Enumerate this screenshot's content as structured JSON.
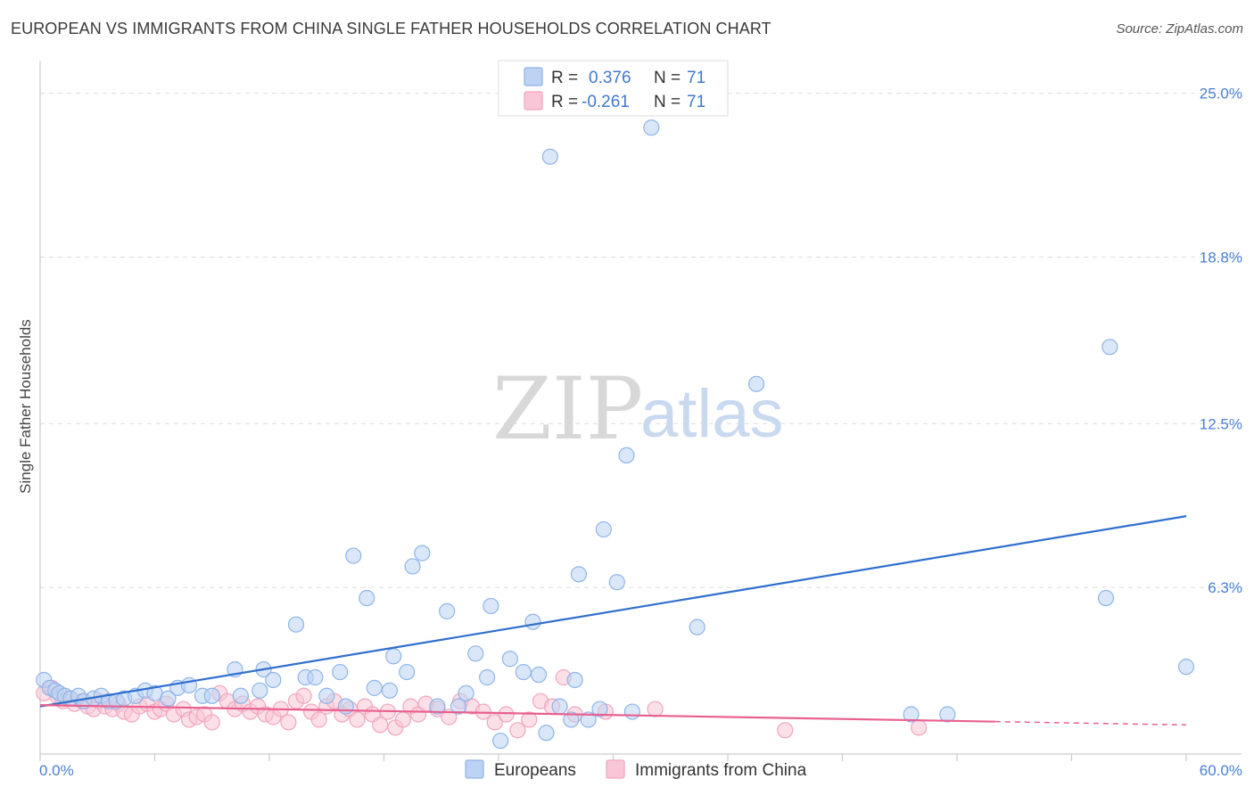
{
  "title": "EUROPEAN VS IMMIGRANTS FROM CHINA SINGLE FATHER HOUSEHOLDS CORRELATION CHART",
  "source": "Source: ZipAtlas.com",
  "watermark": {
    "zip": "ZIP",
    "atlas": "atlas"
  },
  "legend": {
    "r_label": "R =",
    "n_label": "N =",
    "series": [
      {
        "name": "Europeans",
        "r": "0.376",
        "n": "71",
        "color": "#8fb4e8",
        "fill": "#bcd3f3",
        "line": "#2f6fce"
      },
      {
        "name": "Immigrants from China",
        "r": "-0.261",
        "n": "71",
        "color": "#f2a5bf",
        "fill": "#f8c6d6",
        "line": "#e8608f"
      }
    ]
  },
  "chart_data": {
    "type": "scatter",
    "title": "EUROPEAN VS IMMIGRANTS FROM CHINA SINGLE FATHER HOUSEHOLDS CORRELATION CHART",
    "xlabel": "",
    "ylabel": "Single Father Households",
    "xlim": [
      0,
      60
    ],
    "ylim": [
      0,
      26.1
    ],
    "y_ticks": [
      {
        "value": 6.3,
        "label": "6.3%"
      },
      {
        "value": 12.5,
        "label": "12.5%"
      },
      {
        "value": 18.8,
        "label": "18.8%"
      },
      {
        "value": 25.0,
        "label": "25.0%"
      }
    ],
    "x_tick_labels": [
      {
        "value": 0,
        "label": "0.0%"
      },
      {
        "value": 60,
        "label": "60.0%"
      }
    ],
    "x_minor_ticks": [
      0,
      6,
      12,
      18,
      24,
      30,
      36,
      42,
      48,
      54,
      60
    ],
    "series": [
      {
        "name": "Europeans",
        "trend": {
          "x": [
            0,
            60
          ],
          "y": [
            1.8,
            9.0
          ],
          "dashed_from": null
        },
        "points": [
          [
            0.2,
            2.8
          ],
          [
            0.5,
            2.5
          ],
          [
            0.8,
            2.4
          ],
          [
            1.0,
            2.3
          ],
          [
            1.3,
            2.2
          ],
          [
            1.6,
            2.1
          ],
          [
            2.0,
            2.2
          ],
          [
            2.3,
            2.0
          ],
          [
            2.8,
            2.1
          ],
          [
            3.2,
            2.2
          ],
          [
            3.6,
            2.0
          ],
          [
            4.0,
            2.0
          ],
          [
            4.4,
            2.1
          ],
          [
            5.0,
            2.2
          ],
          [
            5.5,
            2.4
          ],
          [
            6.0,
            2.3
          ],
          [
            6.7,
            2.1
          ],
          [
            7.2,
            2.5
          ],
          [
            7.8,
            2.6
          ],
          [
            8.5,
            2.2
          ],
          [
            9.0,
            2.2
          ],
          [
            10.2,
            3.2
          ],
          [
            10.5,
            2.2
          ],
          [
            11.5,
            2.4
          ],
          [
            11.7,
            3.2
          ],
          [
            12.2,
            2.8
          ],
          [
            13.4,
            4.9
          ],
          [
            13.9,
            2.9
          ],
          [
            14.4,
            2.9
          ],
          [
            15.0,
            2.2
          ],
          [
            15.7,
            3.1
          ],
          [
            16.0,
            1.8
          ],
          [
            16.4,
            7.5
          ],
          [
            17.1,
            5.9
          ],
          [
            17.5,
            2.5
          ],
          [
            18.3,
            2.4
          ],
          [
            18.5,
            3.7
          ],
          [
            19.2,
            3.1
          ],
          [
            19.5,
            7.1
          ],
          [
            20.0,
            7.6
          ],
          [
            20.8,
            1.8
          ],
          [
            21.3,
            5.4
          ],
          [
            21.9,
            1.8
          ],
          [
            22.3,
            2.3
          ],
          [
            22.8,
            3.8
          ],
          [
            23.4,
            2.9
          ],
          [
            23.6,
            5.6
          ],
          [
            24.1,
            0.5
          ],
          [
            24.6,
            3.6
          ],
          [
            25.3,
            3.1
          ],
          [
            25.8,
            5.0
          ],
          [
            26.1,
            3.0
          ],
          [
            26.5,
            0.8
          ],
          [
            26.7,
            22.6
          ],
          [
            27.2,
            1.8
          ],
          [
            27.8,
            1.3
          ],
          [
            28.0,
            2.8
          ],
          [
            28.2,
            6.8
          ],
          [
            28.7,
            1.3
          ],
          [
            29.3,
            1.7
          ],
          [
            29.5,
            8.5
          ],
          [
            30.2,
            6.5
          ],
          [
            30.7,
            11.3
          ],
          [
            31.0,
            1.6
          ],
          [
            32.0,
            23.7
          ],
          [
            34.4,
            4.8
          ],
          [
            37.5,
            14.0
          ],
          [
            45.6,
            1.5
          ],
          [
            47.5,
            1.5
          ],
          [
            55.8,
            5.9
          ],
          [
            56.0,
            15.4
          ],
          [
            60.0,
            3.3
          ]
        ]
      },
      {
        "name": "Immigrants from China",
        "trend": {
          "x": [
            0,
            60
          ],
          "y": [
            1.85,
            1.1
          ],
          "dashed_from": 50
        },
        "points": [
          [
            0.2,
            2.3
          ],
          [
            0.6,
            2.5
          ],
          [
            0.9,
            2.2
          ],
          [
            1.2,
            2.0
          ],
          [
            1.5,
            2.1
          ],
          [
            1.8,
            1.9
          ],
          [
            2.2,
            2.0
          ],
          [
            2.5,
            1.8
          ],
          [
            2.8,
            1.7
          ],
          [
            3.1,
            2.0
          ],
          [
            3.4,
            1.8
          ],
          [
            3.8,
            1.7
          ],
          [
            4.1,
            1.9
          ],
          [
            4.4,
            1.6
          ],
          [
            4.8,
            1.5
          ],
          [
            5.2,
            1.8
          ],
          [
            5.6,
            1.9
          ],
          [
            6.0,
            1.6
          ],
          [
            6.3,
            1.7
          ],
          [
            6.6,
            1.9
          ],
          [
            7.0,
            1.5
          ],
          [
            7.5,
            1.7
          ],
          [
            7.8,
            1.3
          ],
          [
            8.2,
            1.4
          ],
          [
            8.6,
            1.5
          ],
          [
            9.0,
            1.2
          ],
          [
            9.4,
            2.3
          ],
          [
            9.8,
            2.0
          ],
          [
            10.2,
            1.7
          ],
          [
            10.6,
            1.9
          ],
          [
            11.0,
            1.6
          ],
          [
            11.4,
            1.8
          ],
          [
            11.8,
            1.5
          ],
          [
            12.2,
            1.4
          ],
          [
            12.6,
            1.7
          ],
          [
            13.0,
            1.2
          ],
          [
            13.4,
            2.0
          ],
          [
            13.8,
            2.2
          ],
          [
            14.2,
            1.6
          ],
          [
            14.6,
            1.3
          ],
          [
            15.0,
            1.8
          ],
          [
            15.4,
            2.0
          ],
          [
            15.8,
            1.5
          ],
          [
            16.2,
            1.7
          ],
          [
            16.6,
            1.3
          ],
          [
            17.0,
            1.8
          ],
          [
            17.4,
            1.5
          ],
          [
            17.8,
            1.1
          ],
          [
            18.2,
            1.6
          ],
          [
            18.6,
            1.0
          ],
          [
            19.0,
            1.3
          ],
          [
            19.4,
            1.8
          ],
          [
            19.8,
            1.5
          ],
          [
            20.2,
            1.9
          ],
          [
            20.8,
            1.7
          ],
          [
            21.4,
            1.4
          ],
          [
            22.0,
            2.0
          ],
          [
            22.6,
            1.8
          ],
          [
            23.2,
            1.6
          ],
          [
            23.8,
            1.2
          ],
          [
            24.4,
            1.5
          ],
          [
            25.0,
            0.9
          ],
          [
            25.6,
            1.3
          ],
          [
            26.2,
            2.0
          ],
          [
            26.8,
            1.8
          ],
          [
            27.4,
            2.9
          ],
          [
            28.0,
            1.5
          ],
          [
            29.6,
            1.6
          ],
          [
            32.2,
            1.7
          ],
          [
            39.0,
            0.9
          ],
          [
            46.0,
            1.0
          ]
        ]
      }
    ]
  }
}
